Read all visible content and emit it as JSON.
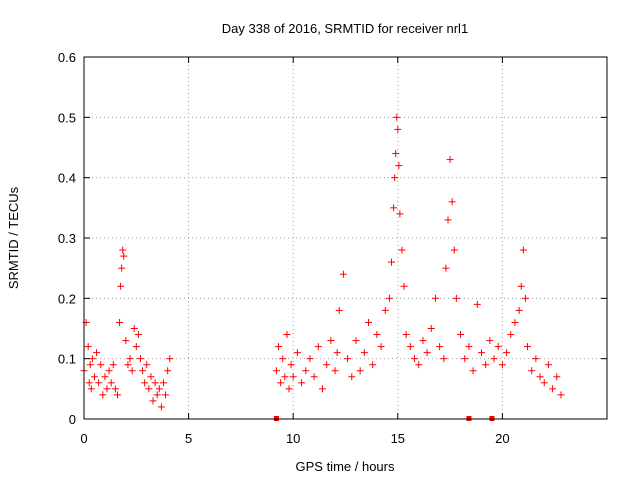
{
  "chart_data": {
    "type": "scatter",
    "title": "Day 338 of 2016, SRMTID for receiver nrl1",
    "xlabel": "GPS time / hours",
    "ylabel": "SRMTID / TECUs",
    "xlim": [
      0,
      25
    ],
    "ylim": [
      0,
      0.6
    ],
    "xticks": [
      0,
      5,
      10,
      15,
      20
    ],
    "yticks": [
      0,
      0.1,
      0.2,
      0.3,
      0.4,
      0.5,
      0.6
    ],
    "grid": true,
    "marker": "+",
    "series": [
      {
        "name": "SRMTID",
        "color": "#ff0000",
        "x": [
          0.0,
          0.1,
          0.2,
          0.25,
          0.3,
          0.35,
          0.4,
          0.5,
          0.6,
          0.7,
          0.8,
          0.9,
          1.0,
          1.1,
          1.2,
          1.3,
          1.4,
          1.5,
          1.6,
          1.7,
          1.75,
          1.8,
          1.85,
          1.9,
          2.0,
          2.1,
          2.2,
          2.3,
          2.4,
          2.5,
          2.6,
          2.7,
          2.8,
          2.9,
          3.0,
          3.1,
          3.2,
          3.3,
          3.4,
          3.5,
          3.6,
          3.7,
          3.8,
          3.9,
          4.0,
          4.1,
          9.2,
          9.3,
          9.4,
          9.5,
          9.6,
          9.7,
          9.8,
          9.9,
          10.0,
          10.2,
          10.4,
          10.6,
          10.8,
          11.0,
          11.2,
          11.4,
          11.6,
          11.8,
          12.0,
          12.1,
          12.2,
          12.4,
          12.6,
          12.8,
          13.0,
          13.2,
          13.4,
          13.6,
          13.8,
          14.0,
          14.2,
          14.4,
          14.6,
          14.7,
          14.8,
          14.85,
          14.9,
          14.95,
          15.0,
          15.05,
          15.1,
          15.2,
          15.3,
          15.4,
          15.6,
          15.8,
          16.0,
          16.2,
          16.4,
          16.6,
          16.8,
          17.0,
          17.2,
          17.3,
          17.4,
          17.5,
          17.6,
          17.7,
          17.8,
          18.0,
          18.2,
          18.4,
          18.6,
          18.8,
          19.0,
          19.2,
          19.4,
          19.6,
          19.8,
          20.0,
          20.2,
          20.4,
          20.6,
          20.8,
          20.9,
          21.0,
          21.1,
          21.2,
          21.4,
          21.6,
          21.8,
          22.0,
          22.2,
          22.4,
          22.6,
          22.8
        ],
        "y": [
          0.08,
          0.16,
          0.12,
          0.06,
          0.09,
          0.05,
          0.1,
          0.07,
          0.11,
          0.06,
          0.09,
          0.04,
          0.07,
          0.05,
          0.08,
          0.06,
          0.09,
          0.05,
          0.04,
          0.16,
          0.22,
          0.25,
          0.28,
          0.27,
          0.13,
          0.09,
          0.1,
          0.08,
          0.15,
          0.12,
          0.14,
          0.1,
          0.08,
          0.06,
          0.09,
          0.05,
          0.07,
          0.03,
          0.06,
          0.04,
          0.05,
          0.02,
          0.06,
          0.04,
          0.08,
          0.1,
          0.08,
          0.12,
          0.06,
          0.1,
          0.07,
          0.14,
          0.05,
          0.09,
          0.07,
          0.11,
          0.06,
          0.08,
          0.1,
          0.07,
          0.12,
          0.05,
          0.09,
          0.13,
          0.08,
          0.11,
          0.18,
          0.24,
          0.1,
          0.07,
          0.13,
          0.08,
          0.11,
          0.16,
          0.09,
          0.14,
          0.12,
          0.18,
          0.2,
          0.26,
          0.35,
          0.4,
          0.44,
          0.5,
          0.48,
          0.42,
          0.34,
          0.28,
          0.22,
          0.14,
          0.12,
          0.1,
          0.09,
          0.13,
          0.11,
          0.15,
          0.2,
          0.12,
          0.1,
          0.25,
          0.33,
          0.43,
          0.36,
          0.28,
          0.2,
          0.14,
          0.1,
          0.12,
          0.08,
          0.19,
          0.11,
          0.09,
          0.13,
          0.1,
          0.12,
          0.09,
          0.11,
          0.14,
          0.16,
          0.18,
          0.22,
          0.28,
          0.2,
          0.12,
          0.08,
          0.1,
          0.07,
          0.06,
          0.09,
          0.05,
          0.07,
          0.04
        ]
      }
    ],
    "baseline_marks_x": [
      9.2,
      18.4,
      19.5
    ]
  }
}
